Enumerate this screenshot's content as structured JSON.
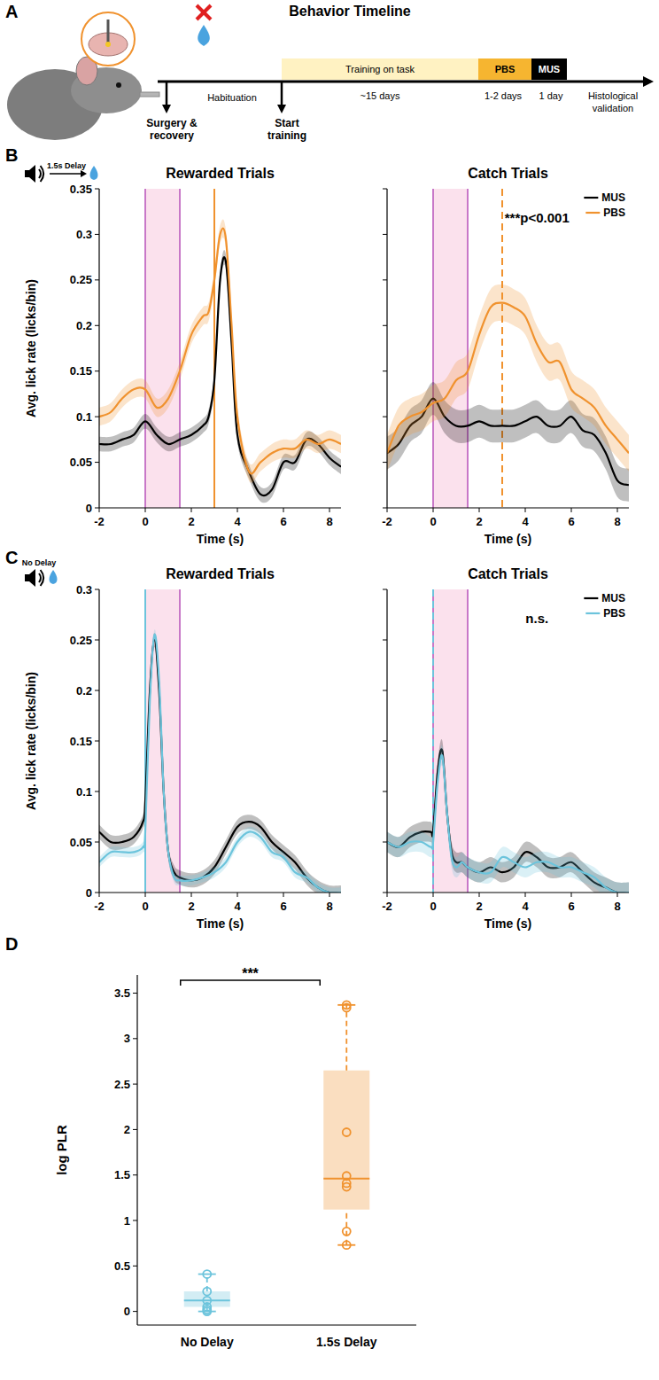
{
  "panels": {
    "a": "A",
    "b": "B",
    "c": "C",
    "d": "D"
  },
  "timeline": {
    "title": "Behavior Timeline",
    "training": "Training on task",
    "training_duration": "~15 days",
    "pbs": "PBS",
    "pbs_duration": "1-2 days",
    "mus": "MUS",
    "mus_duration": "1 day",
    "end": "Histological validation",
    "start": "Surgery & recovery",
    "start_training": "Start training",
    "habituation": "Habituation"
  },
  "icons": {
    "b": "1.5s Delay",
    "c": "No Delay"
  },
  "chart_data": [
    {
      "type": "line",
      "title": "Rewarded Trials",
      "x_label": "Time (s)",
      "y_label": "Avg. lick rate (licks/bin)",
      "xlim": [
        -2,
        8.5
      ],
      "xticks": [
        -2,
        0,
        2,
        4,
        6,
        8
      ],
      "ylim": [
        0,
        0.35
      ],
      "yticks": [
        0,
        0.05,
        0.1,
        0.15,
        0.2,
        0.25,
        0.3,
        0.35
      ],
      "stimulus_window": [
        0,
        1.5
      ],
      "reward_time": 3,
      "reward_line_style": "solid",
      "x": [
        -2,
        -1.5,
        -1,
        -0.5,
        0,
        0.5,
        1,
        1.5,
        2,
        2.5,
        2.75,
        3,
        3.25,
        3.5,
        3.75,
        4,
        4.5,
        5,
        5.5,
        6,
        6.5,
        7,
        7.5,
        8,
        8.5
      ],
      "series": [
        {
          "name": "MUS",
          "color": "#000000",
          "values": [
            0.07,
            0.07,
            0.075,
            0.08,
            0.095,
            0.08,
            0.07,
            0.075,
            0.08,
            0.09,
            0.1,
            0.14,
            0.25,
            0.27,
            0.18,
            0.08,
            0.04,
            0.015,
            0.02,
            0.05,
            0.05,
            0.075,
            0.07,
            0.055,
            0.045
          ],
          "error": [
            0.008,
            0.008,
            0.008,
            0.008,
            0.008,
            0.008,
            0.008,
            0.008,
            0.008,
            0.008,
            0.008,
            0.008,
            0.008,
            0.008,
            0.008,
            0.008,
            0.008,
            0.008,
            0.008,
            0.008,
            0.008,
            0.008,
            0.008,
            0.008,
            0.008
          ]
        },
        {
          "name": "PBS",
          "color": "#f0922e",
          "values": [
            0.1,
            0.105,
            0.12,
            0.13,
            0.13,
            0.11,
            0.12,
            0.15,
            0.19,
            0.21,
            0.215,
            0.25,
            0.3,
            0.295,
            0.2,
            0.1,
            0.04,
            0.05,
            0.06,
            0.065,
            0.065,
            0.075,
            0.07,
            0.075,
            0.07
          ],
          "error": [
            0.01,
            0.01,
            0.01,
            0.01,
            0.01,
            0.01,
            0.01,
            0.01,
            0.01,
            0.01,
            0.01,
            0.01,
            0.01,
            0.01,
            0.01,
            0.01,
            0.01,
            0.01,
            0.01,
            0.01,
            0.01,
            0.01,
            0.01,
            0.01,
            0.01
          ]
        }
      ]
    },
    {
      "type": "line",
      "title": "Catch Trials",
      "x_label": "Time (s)",
      "xlim": [
        -2,
        8.5
      ],
      "xticks": [
        -2,
        0,
        2,
        4,
        6,
        8
      ],
      "ylim": [
        0,
        0.35
      ],
      "yticks": [
        0,
        0.05,
        0.1,
        0.15,
        0.2,
        0.25,
        0.3,
        0.35
      ],
      "tick_labels": "x",
      "legend": "top-right",
      "annotation": "***p<0.001",
      "stimulus_window": [
        0,
        1.5
      ],
      "reward_time": 3,
      "reward_line_style": "dashed",
      "x": [
        -2,
        -1.5,
        -1,
        -0.5,
        0,
        0.5,
        1,
        1.5,
        2,
        2.5,
        3,
        3.5,
        4,
        4.5,
        5,
        5.5,
        6,
        6.5,
        7,
        7.5,
        8,
        8.5
      ],
      "series": [
        {
          "name": "MUS",
          "color": "#000000",
          "values": [
            0.06,
            0.07,
            0.09,
            0.1,
            0.12,
            0.1,
            0.09,
            0.09,
            0.095,
            0.09,
            0.09,
            0.09,
            0.095,
            0.1,
            0.09,
            0.09,
            0.1,
            0.085,
            0.08,
            0.06,
            0.03,
            0.025
          ],
          "error": [
            0.018,
            0.018,
            0.018,
            0.018,
            0.018,
            0.018,
            0.018,
            0.018,
            0.018,
            0.018,
            0.018,
            0.018,
            0.018,
            0.018,
            0.018,
            0.018,
            0.018,
            0.018,
            0.018,
            0.018,
            0.018,
            0.018
          ]
        },
        {
          "name": "PBS",
          "color": "#f0922e",
          "values": [
            0.06,
            0.09,
            0.1,
            0.105,
            0.115,
            0.12,
            0.14,
            0.15,
            0.19,
            0.22,
            0.225,
            0.22,
            0.21,
            0.18,
            0.16,
            0.16,
            0.13,
            0.12,
            0.11,
            0.09,
            0.075,
            0.06
          ],
          "error": [
            0.02,
            0.02,
            0.02,
            0.02,
            0.02,
            0.02,
            0.02,
            0.02,
            0.02,
            0.02,
            0.02,
            0.02,
            0.02,
            0.02,
            0.02,
            0.02,
            0.02,
            0.02,
            0.02,
            0.02,
            0.02,
            0.02
          ]
        }
      ]
    },
    {
      "type": "line",
      "title": "Rewarded Trials",
      "x_label": "Time (s)",
      "y_label": "Avg. lick rate (licks/bin)",
      "xlim": [
        -2,
        8.5
      ],
      "xticks": [
        -2,
        0,
        2,
        4,
        6,
        8
      ],
      "ylim": [
        0,
        0.3
      ],
      "yticks": [
        0,
        0.05,
        0.1,
        0.15,
        0.2,
        0.25,
        0.3
      ],
      "stimulus_window": [
        0,
        1.5
      ],
      "reward_time": 0,
      "reward_line_style": "solid",
      "x": [
        -2,
        -1.5,
        -1,
        -0.5,
        -0.1,
        0,
        0.2,
        0.4,
        0.6,
        0.8,
        1,
        1.25,
        1.5,
        2,
        2.5,
        3,
        3.5,
        4,
        4.5,
        5,
        5.5,
        6,
        6.5,
        7,
        7.5,
        8,
        8.5
      ],
      "series": [
        {
          "name": "MUS",
          "color": "#000000",
          "values": [
            0.06,
            0.05,
            0.05,
            0.055,
            0.07,
            0.09,
            0.2,
            0.25,
            0.2,
            0.1,
            0.04,
            0.02,
            0.015,
            0.012,
            0.015,
            0.025,
            0.045,
            0.065,
            0.07,
            0.065,
            0.05,
            0.04,
            0.03,
            0.015,
            0.005,
            0,
            0
          ],
          "error": [
            0.007,
            0.007,
            0.007,
            0.007,
            0.007,
            0.007,
            0.007,
            0.007,
            0.007,
            0.007,
            0.007,
            0.007,
            0.007,
            0.007,
            0.007,
            0.007,
            0.007,
            0.007,
            0.007,
            0.007,
            0.007,
            0.007,
            0.007,
            0.007,
            0.007,
            0.007,
            0.007
          ]
        },
        {
          "name": "PBS",
          "color": "#6cc4dc",
          "values": [
            0.03,
            0.04,
            0.04,
            0.04,
            0.045,
            0.06,
            0.19,
            0.255,
            0.21,
            0.1,
            0.04,
            0.015,
            0.012,
            0.012,
            0.015,
            0.02,
            0.03,
            0.05,
            0.06,
            0.055,
            0.04,
            0.035,
            0.02,
            0.015,
            0.005,
            0,
            0
          ],
          "error": [
            0.005,
            0.005,
            0.005,
            0.005,
            0.005,
            0.005,
            0.005,
            0.005,
            0.005,
            0.005,
            0.005,
            0.005,
            0.005,
            0.005,
            0.005,
            0.005,
            0.005,
            0.005,
            0.005,
            0.005,
            0.005,
            0.005,
            0.005,
            0.005,
            0.005,
            0.005,
            0.005
          ]
        }
      ]
    },
    {
      "type": "line",
      "title": "Catch Trials",
      "x_label": "Time (s)",
      "xlim": [
        -2,
        8.5
      ],
      "xticks": [
        -2,
        0,
        2,
        4,
        6,
        8
      ],
      "ylim": [
        0,
        0.3
      ],
      "yticks": [
        0,
        0.05,
        0.1,
        0.15,
        0.2,
        0.25,
        0.3
      ],
      "tick_labels": "x",
      "legend": "top-right",
      "annotation": "n.s.",
      "stimulus_window": [
        0,
        1.5
      ],
      "reward_time": 0,
      "reward_line_style": "dashed",
      "x": [
        -2,
        -1.5,
        -1,
        -0.5,
        -0.1,
        0,
        0.2,
        0.4,
        0.6,
        0.8,
        1,
        1.25,
        1.5,
        2,
        2.5,
        3,
        3.5,
        4,
        4.5,
        5,
        5.5,
        6,
        6.5,
        7,
        7.5,
        8,
        8.5
      ],
      "series": [
        {
          "name": "MUS",
          "color": "#000000",
          "values": [
            0.05,
            0.045,
            0.055,
            0.06,
            0.06,
            0.06,
            0.12,
            0.14,
            0.08,
            0.04,
            0.03,
            0.03,
            0.025,
            0.02,
            0.025,
            0.02,
            0.025,
            0.04,
            0.035,
            0.025,
            0.025,
            0.03,
            0.02,
            0.01,
            0.005,
            0,
            0
          ],
          "error": [
            0.01,
            0.01,
            0.01,
            0.01,
            0.01,
            0.01,
            0.01,
            0.01,
            0.01,
            0.01,
            0.01,
            0.01,
            0.01,
            0.01,
            0.01,
            0.01,
            0.01,
            0.01,
            0.01,
            0.01,
            0.01,
            0.01,
            0.01,
            0.01,
            0.01,
            0.01,
            0.01
          ]
        },
        {
          "name": "PBS",
          "color": "#6cc4dc",
          "values": [
            0.05,
            0.045,
            0.05,
            0.05,
            0.045,
            0.05,
            0.11,
            0.135,
            0.08,
            0.035,
            0.025,
            0.03,
            0.025,
            0.02,
            0.02,
            0.035,
            0.03,
            0.025,
            0.03,
            0.03,
            0.025,
            0.025,
            0.02,
            0.015,
            0.005,
            0,
            0
          ],
          "error": [
            0.01,
            0.01,
            0.01,
            0.01,
            0.01,
            0.01,
            0.01,
            0.01,
            0.01,
            0.01,
            0.01,
            0.01,
            0.01,
            0.01,
            0.01,
            0.01,
            0.01,
            0.01,
            0.01,
            0.01,
            0.01,
            0.01,
            0.01,
            0.01,
            0.01,
            0.01,
            0.01
          ]
        }
      ]
    },
    {
      "type": "box",
      "y_label": "log PLR",
      "categories": [
        "No Delay",
        "1.5s Delay"
      ],
      "ylim": [
        -0.15,
        3.7
      ],
      "yticks": [
        0,
        0.5,
        1,
        1.5,
        2,
        2.5,
        3,
        3.5
      ],
      "annotation": "***",
      "boxes": [
        {
          "color": "#6cc4dc",
          "min": 0,
          "q1": 0.05,
          "median": 0.12,
          "q3": 0.22,
          "max": 0.41,
          "points": [
            0.41,
            0.22,
            0.12,
            0.05,
            0.02,
            0
          ]
        },
        {
          "color": "#f0922e",
          "min": 0.73,
          "q1": 1.12,
          "median": 1.46,
          "q3": 2.65,
          "max": 3.37,
          "points": [
            3.37,
            3.34,
            1.97,
            1.49,
            1.41,
            1.37,
            0.88,
            0.73
          ]
        }
      ]
    }
  ]
}
